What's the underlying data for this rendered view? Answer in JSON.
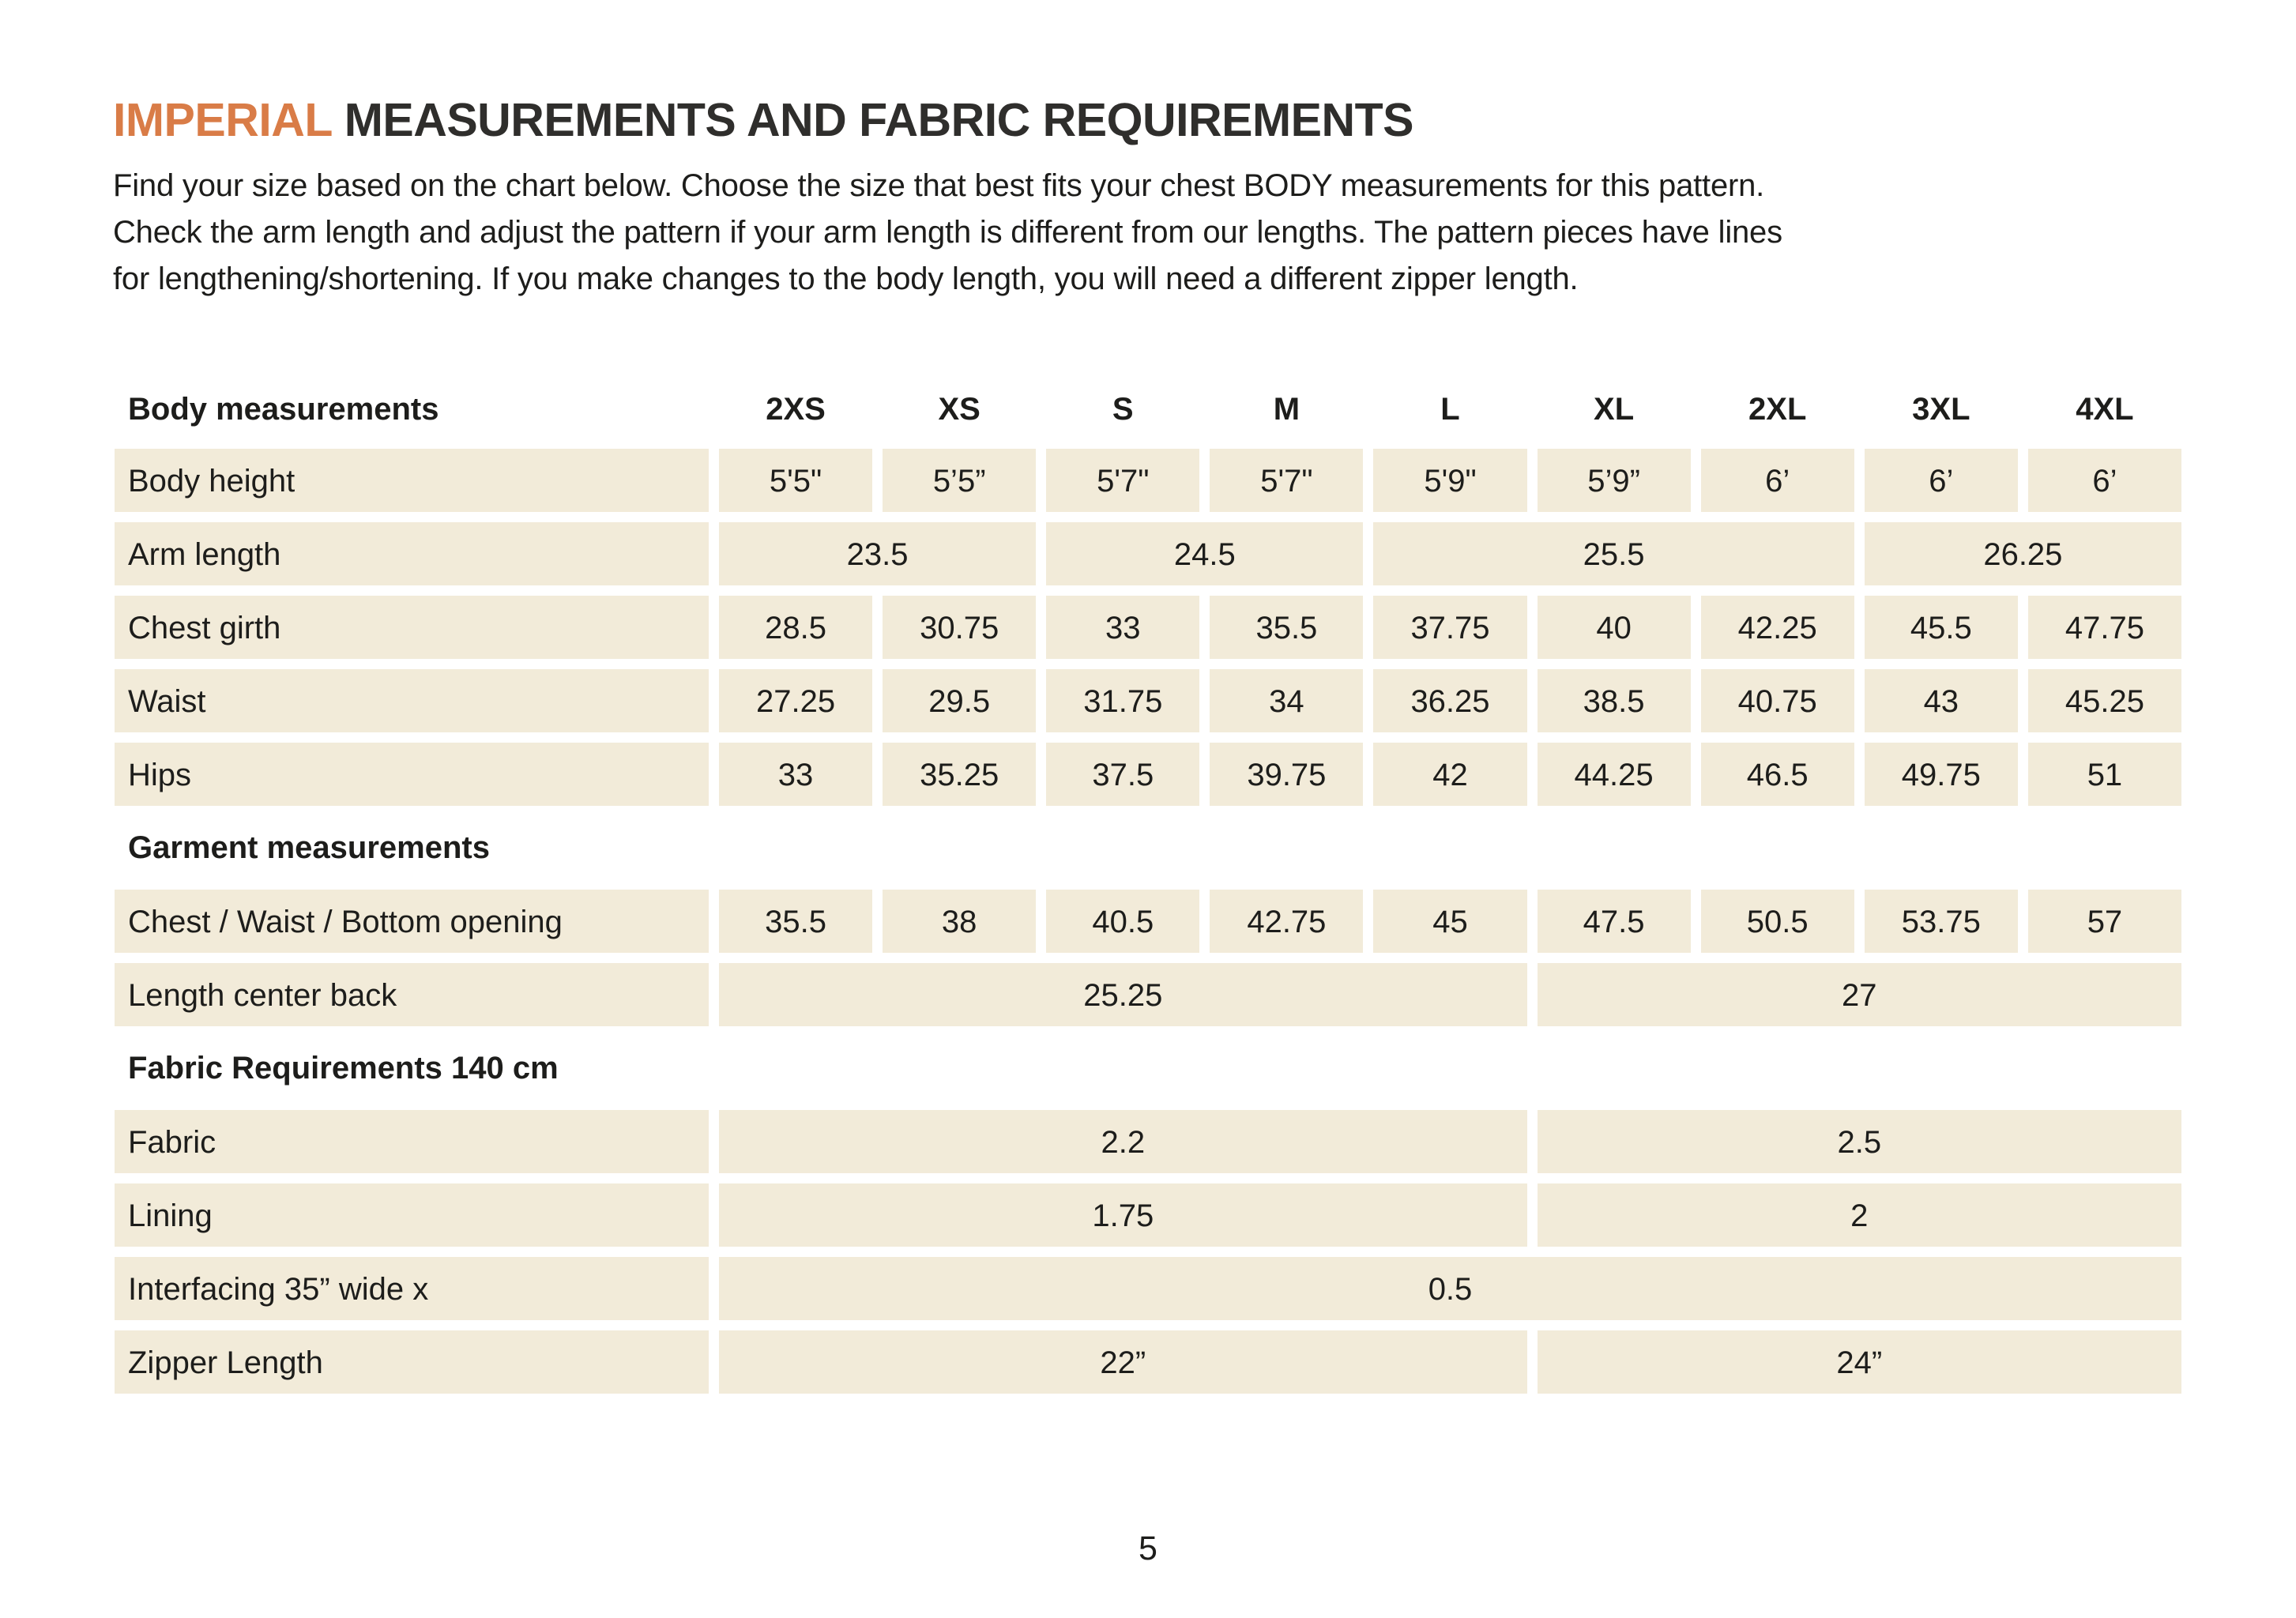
{
  "header": {
    "title_highlight": "IMPERIAL",
    "title_rest": " MEASUREMENTS AND FABRIC REQUIREMENTS",
    "intro_lines": [
      "Find your size based on the chart below. Choose the size that best fits your chest BODY measurements for this pattern.",
      "Check the arm length and adjust the pattern if your arm length is different from our lengths. The pattern pieces have lines",
      "for lengthening/shortening. If you make changes to the body length, you will need a different zipper length."
    ]
  },
  "table": {
    "size_columns": [
      "2XS",
      "XS",
      "S",
      "M",
      "L",
      "XL",
      "2XL",
      "3XL",
      "4XL"
    ],
    "sections": [
      {
        "heading": "Body measurements",
        "heading_type": "column-header-row",
        "rows": [
          {
            "label": "Body height",
            "cells": [
              {
                "v": "5'5\"",
                "span": 1
              },
              {
                "v": "5’5”",
                "span": 1
              },
              {
                "v": "5'7\"",
                "span": 1
              },
              {
                "v": "5'7\"",
                "span": 1
              },
              {
                "v": "5'9\"",
                "span": 1
              },
              {
                "v": "5’9”",
                "span": 1
              },
              {
                "v": "6’",
                "span": 1
              },
              {
                "v": "6’",
                "span": 1
              },
              {
                "v": "6’",
                "span": 1
              }
            ]
          },
          {
            "label": "Arm length",
            "cells": [
              {
                "v": "23.5",
                "span": 2
              },
              {
                "v": "24.5",
                "span": 2
              },
              {
                "v": "25.5",
                "span": 3
              },
              {
                "v": "26.25",
                "span": 2
              }
            ]
          },
          {
            "label": "Chest girth",
            "cells": [
              {
                "v": "28.5",
                "span": 1
              },
              {
                "v": "30.75",
                "span": 1
              },
              {
                "v": "33",
                "span": 1
              },
              {
                "v": "35.5",
                "span": 1
              },
              {
                "v": "37.75",
                "span": 1
              },
              {
                "v": "40",
                "span": 1
              },
              {
                "v": "42.25",
                "span": 1
              },
              {
                "v": "45.5",
                "span": 1
              },
              {
                "v": "47.75",
                "span": 1
              }
            ]
          },
          {
            "label": "Waist",
            "cells": [
              {
                "v": "27.25",
                "span": 1
              },
              {
                "v": "29.5",
                "span": 1
              },
              {
                "v": "31.75",
                "span": 1
              },
              {
                "v": "34",
                "span": 1
              },
              {
                "v": "36.25",
                "span": 1
              },
              {
                "v": "38.5",
                "span": 1
              },
              {
                "v": "40.75",
                "span": 1
              },
              {
                "v": "43",
                "span": 1
              },
              {
                "v": "45.25",
                "span": 1
              }
            ]
          },
          {
            "label": "Hips",
            "cells": [
              {
                "v": "33",
                "span": 1
              },
              {
                "v": "35.25",
                "span": 1
              },
              {
                "v": "37.5",
                "span": 1
              },
              {
                "v": "39.75",
                "span": 1
              },
              {
                "v": "42",
                "span": 1
              },
              {
                "v": "44.25",
                "span": 1
              },
              {
                "v": "46.5",
                "span": 1
              },
              {
                "v": "49.75",
                "span": 1
              },
              {
                "v": "51",
                "span": 1
              }
            ]
          }
        ]
      },
      {
        "heading": "Garment measurements",
        "heading_type": "section-heading",
        "rows": [
          {
            "label": "Chest / Waist / Bottom opening",
            "cells": [
              {
                "v": "35.5",
                "span": 1
              },
              {
                "v": "38",
                "span": 1
              },
              {
                "v": "40.5",
                "span": 1
              },
              {
                "v": "42.75",
                "span": 1
              },
              {
                "v": "45",
                "span": 1
              },
              {
                "v": "47.5",
                "span": 1
              },
              {
                "v": "50.5",
                "span": 1
              },
              {
                "v": "53.75",
                "span": 1
              },
              {
                "v": "57",
                "span": 1
              }
            ]
          },
          {
            "label": "Length center back",
            "cells": [
              {
                "v": "25.25",
                "span": 5
              },
              {
                "v": "27",
                "span": 4
              }
            ]
          }
        ]
      },
      {
        "heading": "Fabric Requirements 140 cm",
        "heading_type": "section-heading",
        "rows": [
          {
            "label": "Fabric",
            "cells": [
              {
                "v": "2.2",
                "span": 5
              },
              {
                "v": "2.5",
                "span": 4
              }
            ]
          },
          {
            "label": "Lining",
            "cells": [
              {
                "v": "1.75",
                "span": 5
              },
              {
                "v": "2",
                "span": 4
              }
            ]
          },
          {
            "label": "Interfacing  35” wide x",
            "cells": [
              {
                "v": "0.5",
                "span": 9
              }
            ]
          },
          {
            "label": "Zipper Length",
            "cells": [
              {
                "v": "22”",
                "span": 5
              },
              {
                "v": "24”",
                "span": 4
              }
            ]
          }
        ]
      }
    ]
  },
  "footer": {
    "page_number": "5"
  },
  "colors": {
    "accent_orange": "#D97C47",
    "cell_beige": "#F2EBD9",
    "text_dark": "#1D1D1B"
  }
}
